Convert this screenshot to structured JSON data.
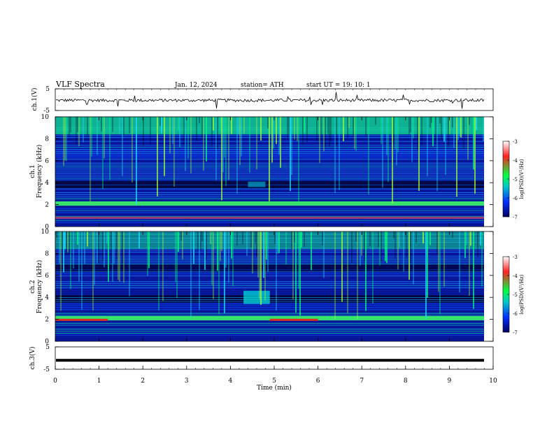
{
  "header": {
    "title": "VLF  Spectra",
    "date": "Jan. 12, 2024",
    "station": "station= ATH",
    "start": "start  UT  =   19: 10: 1"
  },
  "colorbar": {
    "label": "log(PSD)(V²/Hz)",
    "ticks": [
      "-3",
      "-4",
      "-5",
      "-6",
      "-7"
    ],
    "colors": [
      "#ffffff",
      "#ff2020",
      "#00ff40",
      "#00c8c8",
      "#0030ff",
      "#000060"
    ]
  },
  "chart_data": [
    {
      "type": "line",
      "panel": "ch1-waveform",
      "ylabel": "ch.1(V)",
      "ylim": [
        -5,
        5
      ],
      "yticks": [
        "5",
        "-5"
      ],
      "xlim": [
        0,
        10
      ],
      "baseline": -0.3
    },
    {
      "type": "heatmap",
      "panel": "ch1-spectrogram",
      "ylabel": "ch.1\nFrequency (kHz)",
      "ylabel_lines": [
        "ch.1",
        "Frequency  (kHz)"
      ],
      "ylim": [
        0,
        10
      ],
      "yticks": [
        "0",
        "2",
        "4",
        "6",
        "8",
        "10"
      ],
      "xlim": [
        0,
        10
      ],
      "zlim": [
        -7,
        -3
      ]
    },
    {
      "type": "heatmap",
      "panel": "ch2-spectrogram",
      "ylabel_lines": [
        "ch.2",
        "Frequency  (kHz)"
      ],
      "ylim": [
        0,
        10
      ],
      "yticks": [
        "0",
        "2",
        "4",
        "6",
        "8",
        "10"
      ],
      "xlim": [
        0,
        10
      ],
      "zlim": [
        -7,
        -3
      ]
    },
    {
      "type": "line",
      "panel": "ch3-waveform",
      "ylabel": "ch.3(V)",
      "ylim": [
        -5,
        5
      ],
      "yticks": [
        "5",
        "-5"
      ],
      "xlim": [
        0,
        10
      ],
      "xlabel": "Time  (min)",
      "xticks": [
        "0",
        "1",
        "2",
        "3",
        "4",
        "5",
        "6",
        "7",
        "8",
        "9",
        "10"
      ],
      "baseline": -1.0
    }
  ]
}
